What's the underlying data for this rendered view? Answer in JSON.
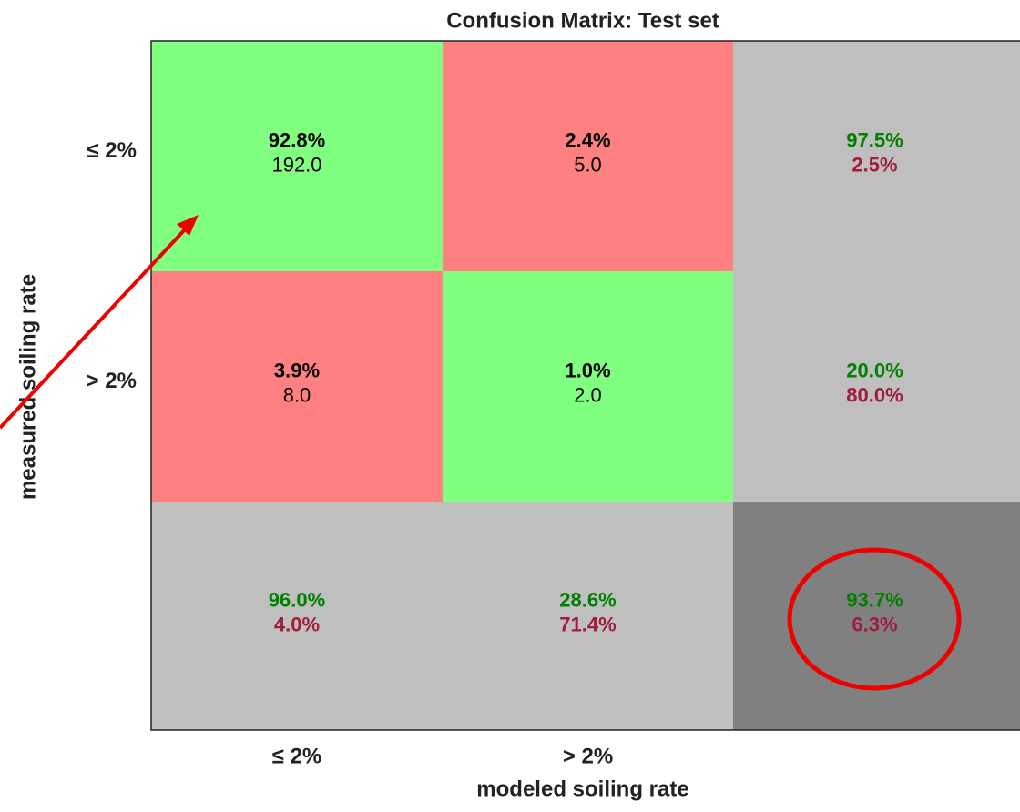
{
  "chart_data": {
    "type": "confusion-matrix",
    "title": "Confusion Matrix: Test set",
    "x_label": "modeled soiling rate",
    "y_label": "measured soiling rate",
    "x_categories": [
      "≤ 2%",
      "> 2%"
    ],
    "y_categories": [
      "≤ 2%",
      "> 2%"
    ],
    "colors": {
      "correct": "#80ff80",
      "wrong": "#ff8080",
      "summary": "#bfbfbf",
      "total": "#808080",
      "good_text": "#008000",
      "bad_text": "#a01c3c",
      "count_text": "#000000"
    },
    "cells": [
      [
        {
          "kind": "correct",
          "values": [
            92.8,
            192
          ],
          "value_labels": [
            "92.8%",
            "192.0"
          ]
        },
        {
          "kind": "wrong",
          "values": [
            2.4,
            5
          ],
          "value_labels": [
            "2.4%",
            "5.0"
          ]
        },
        {
          "kind": "summary",
          "values": [
            97.5,
            2.5
          ],
          "value_labels": [
            "97.5%",
            "2.5%"
          ]
        }
      ],
      [
        {
          "kind": "wrong",
          "values": [
            3.9,
            8
          ],
          "value_labels": [
            "3.9%",
            "8.0"
          ]
        },
        {
          "kind": "correct",
          "values": [
            1.0,
            2
          ],
          "value_labels": [
            "1.0%",
            "2.0"
          ]
        },
        {
          "kind": "summary",
          "values": [
            20.0,
            80.0
          ],
          "value_labels": [
            "20.0%",
            "80.0%"
          ]
        }
      ],
      [
        {
          "kind": "summary",
          "values": [
            96.0,
            4.0
          ],
          "value_labels": [
            "96.0%",
            "4.0%"
          ]
        },
        {
          "kind": "summary",
          "values": [
            28.6,
            71.4
          ],
          "value_labels": [
            "28.6%",
            "71.4%"
          ]
        },
        {
          "kind": "total",
          "values": [
            93.7,
            6.3
          ],
          "value_labels": [
            "93.7%",
            "6.3%"
          ]
        }
      ]
    ]
  }
}
